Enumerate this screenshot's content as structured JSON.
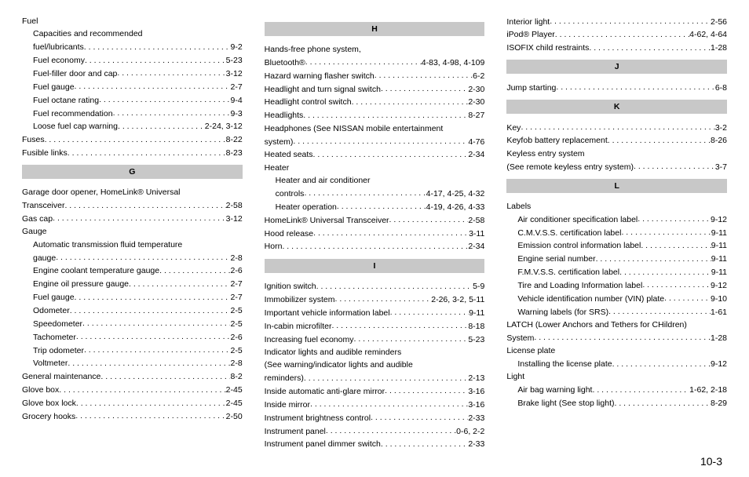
{
  "page_number": "10-3",
  "columns": [
    {
      "blocks": [
        {
          "type": "plain",
          "text": "Fuel",
          "indent": 0
        },
        {
          "type": "plain",
          "text": "Capacities and recommended",
          "indent": 1
        },
        {
          "type": "entry",
          "label": "fuel/lubricants",
          "page": "9-2",
          "indent": 1
        },
        {
          "type": "entry",
          "label": "Fuel economy",
          "page": "5-23",
          "indent": 1
        },
        {
          "type": "entry",
          "label": "Fuel-filler door and cap",
          "page": "3-12",
          "indent": 1
        },
        {
          "type": "entry",
          "label": "Fuel gauge",
          "page": "2-7",
          "indent": 1
        },
        {
          "type": "entry",
          "label": "Fuel octane rating",
          "page": "9-4",
          "indent": 1
        },
        {
          "type": "entry",
          "label": "Fuel recommendation",
          "page": "9-3",
          "indent": 1
        },
        {
          "type": "entry",
          "label": "Loose fuel cap warning",
          "page": "2-24, 3-12",
          "indent": 1
        },
        {
          "type": "entry",
          "label": "Fuses",
          "page": "8-22",
          "indent": 0
        },
        {
          "type": "entry",
          "label": "Fusible links",
          "page": "8-23",
          "indent": 0
        },
        {
          "type": "header",
          "text": "G"
        },
        {
          "type": "plain",
          "text": "Garage door opener, HomeLink® Universal",
          "indent": 0
        },
        {
          "type": "entry",
          "label": "Transceiver",
          "page": "2-58",
          "indent": 0
        },
        {
          "type": "entry",
          "label": "Gas cap",
          "page": "3-12",
          "indent": 0
        },
        {
          "type": "plain",
          "text": "Gauge",
          "indent": 0
        },
        {
          "type": "plain",
          "text": "Automatic transmission fluid temperature",
          "indent": 1
        },
        {
          "type": "entry",
          "label": "gauge",
          "page": "2-8",
          "indent": 1
        },
        {
          "type": "entry",
          "label": "Engine coolant temperature gauge",
          "page": "2-6",
          "indent": 1
        },
        {
          "type": "entry",
          "label": "Engine oil pressure gauge",
          "page": "2-7",
          "indent": 1
        },
        {
          "type": "entry",
          "label": "Fuel gauge",
          "page": "2-7",
          "indent": 1
        },
        {
          "type": "entry",
          "label": "Odometer",
          "page": "2-5",
          "indent": 1
        },
        {
          "type": "entry",
          "label": "Speedometer",
          "page": "2-5",
          "indent": 1
        },
        {
          "type": "entry",
          "label": "Tachometer",
          "page": "2-6",
          "indent": 1
        },
        {
          "type": "entry",
          "label": "Trip odometer",
          "page": "2-5",
          "indent": 1
        },
        {
          "type": "entry",
          "label": "Voltmeter",
          "page": "2-8",
          "indent": 1
        },
        {
          "type": "entry",
          "label": "General maintenance",
          "page": "8-2",
          "indent": 0
        },
        {
          "type": "entry",
          "label": "Glove box",
          "page": "2-45",
          "indent": 0
        },
        {
          "type": "entry",
          "label": "Glove box lock",
          "page": "2-45",
          "indent": 0
        },
        {
          "type": "entry",
          "label": "Grocery hooks",
          "page": "2-50",
          "indent": 0
        }
      ]
    },
    {
      "blocks": [
        {
          "type": "header",
          "text": "H"
        },
        {
          "type": "plain",
          "text": "Hands-free phone system,",
          "indent": 0
        },
        {
          "type": "entry",
          "label": "Bluetooth®",
          "page": "4-83, 4-98, 4-109",
          "indent": 0
        },
        {
          "type": "entry",
          "label": "Hazard warning flasher switch",
          "page": "6-2",
          "indent": 0
        },
        {
          "type": "entry",
          "label": "Headlight and turn signal switch",
          "page": "2-30",
          "indent": 0
        },
        {
          "type": "entry",
          "label": "Headlight control switch",
          "page": "2-30",
          "indent": 0
        },
        {
          "type": "entry",
          "label": "Headlights",
          "page": "8-27",
          "indent": 0
        },
        {
          "type": "plain",
          "text": "Headphones (See NISSAN mobile entertainment",
          "indent": 0
        },
        {
          "type": "entry",
          "label": "system)",
          "page": "4-76",
          "indent": 0
        },
        {
          "type": "entry",
          "label": "Heated seats",
          "page": "2-34",
          "indent": 0
        },
        {
          "type": "plain",
          "text": "Heater",
          "indent": 0
        },
        {
          "type": "plain",
          "text": "Heater and air conditioner",
          "indent": 1
        },
        {
          "type": "entry",
          "label": "controls",
          "page": "4-17, 4-25, 4-32",
          "indent": 1
        },
        {
          "type": "entry",
          "label": "Heater operation",
          "page": "4-19, 4-26, 4-33",
          "indent": 1
        },
        {
          "type": "entry",
          "label": "HomeLink® Universal Transceiver",
          "page": "2-58",
          "indent": 0
        },
        {
          "type": "entry",
          "label": "Hood release",
          "page": "3-11",
          "indent": 0
        },
        {
          "type": "entry",
          "label": "Horn",
          "page": "2-34",
          "indent": 0
        },
        {
          "type": "header",
          "text": "I"
        },
        {
          "type": "entry",
          "label": "Ignition switch",
          "page": "5-9",
          "indent": 0
        },
        {
          "type": "entry",
          "label": "Immobilizer system",
          "page": "2-26, 3-2, 5-11",
          "indent": 0
        },
        {
          "type": "entry",
          "label": "Important vehicle information label",
          "page": "9-11",
          "indent": 0
        },
        {
          "type": "entry",
          "label": "In-cabin microfilter",
          "page": "8-18",
          "indent": 0
        },
        {
          "type": "entry",
          "label": "Increasing fuel economy",
          "page": "5-23",
          "indent": 0
        },
        {
          "type": "plain",
          "text": "Indicator lights and audible reminders",
          "indent": 0
        },
        {
          "type": "plain",
          "text": "(See warning/indicator lights and audible",
          "indent": 0
        },
        {
          "type": "entry",
          "label": "reminders)",
          "page": "2-13",
          "indent": 0
        },
        {
          "type": "entry",
          "label": "Inside automatic anti-glare mirror",
          "page": "3-16",
          "indent": 0
        },
        {
          "type": "entry",
          "label": "Inside mirror",
          "page": "3-16",
          "indent": 0
        },
        {
          "type": "entry",
          "label": "Instrument brightness control",
          "page": "2-33",
          "indent": 0
        },
        {
          "type": "entry",
          "label": "Instrument panel",
          "page": "0-6, 2-2",
          "indent": 0
        },
        {
          "type": "entry",
          "label": "Instrument panel dimmer switch",
          "page": "2-33",
          "indent": 0
        }
      ]
    },
    {
      "blocks": [
        {
          "type": "entry",
          "label": "Interior light",
          "page": "2-56",
          "indent": 0
        },
        {
          "type": "entry",
          "label": "iPod® Player",
          "page": "4-62, 4-64",
          "indent": 0
        },
        {
          "type": "entry",
          "label": "ISOFIX child restraints",
          "page": "1-28",
          "indent": 0
        },
        {
          "type": "header",
          "text": "J"
        },
        {
          "type": "entry",
          "label": "Jump starting",
          "page": "6-8",
          "indent": 0
        },
        {
          "type": "header",
          "text": "K"
        },
        {
          "type": "entry",
          "label": "Key",
          "page": "3-2",
          "indent": 0
        },
        {
          "type": "entry",
          "label": "Keyfob battery replacement",
          "page": "8-26",
          "indent": 0
        },
        {
          "type": "plain",
          "text": "Keyless entry system",
          "indent": 0
        },
        {
          "type": "entry",
          "label": "(See remote keyless entry system)",
          "page": "3-7",
          "indent": 0
        },
        {
          "type": "header",
          "text": "L"
        },
        {
          "type": "plain",
          "text": "Labels",
          "indent": 0
        },
        {
          "type": "entry",
          "label": "Air conditioner specification label",
          "page": "9-12",
          "indent": 1
        },
        {
          "type": "entry",
          "label": "C.M.V.S.S. certification label",
          "page": "9-11",
          "indent": 1
        },
        {
          "type": "entry",
          "label": "Emission control information label",
          "page": "9-11",
          "indent": 1
        },
        {
          "type": "entry",
          "label": "Engine serial number",
          "page": "9-11",
          "indent": 1
        },
        {
          "type": "entry",
          "label": "F.M.V.S.S. certification label",
          "page": "9-11",
          "indent": 1
        },
        {
          "type": "entry",
          "label": "Tire and Loading Information label",
          "page": "9-12",
          "indent": 1
        },
        {
          "type": "entry",
          "label": "Vehicle identification number (VIN) plate",
          "page": "9-10",
          "indent": 1
        },
        {
          "type": "entry",
          "label": "Warning labels (for SRS)",
          "page": "1-61",
          "indent": 1
        },
        {
          "type": "plain",
          "text": "LATCH (Lower Anchors and Tethers for CHildren)",
          "indent": 0
        },
        {
          "type": "entry",
          "label": "System",
          "page": "1-28",
          "indent": 0
        },
        {
          "type": "plain",
          "text": "License plate",
          "indent": 0
        },
        {
          "type": "entry",
          "label": "Installing the license plate",
          "page": "9-12",
          "indent": 1
        },
        {
          "type": "plain",
          "text": "Light",
          "indent": 0
        },
        {
          "type": "entry",
          "label": "Air bag warning light",
          "page": "1-62, 2-18",
          "indent": 1
        },
        {
          "type": "entry",
          "label": "Brake light (See stop light)",
          "page": "8-29",
          "indent": 1
        }
      ]
    }
  ]
}
